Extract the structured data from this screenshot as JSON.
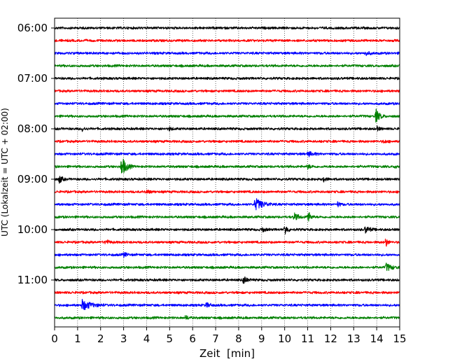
{
  "chart_data": {
    "type": "line",
    "title": "",
    "xlabel": "Zeit  [min]",
    "ylabel": "UTC (Lokalzeit = UTC + 02:00)",
    "xlim": [
      0,
      15
    ],
    "x_ticks": [
      "0",
      "1",
      "2",
      "3",
      "4",
      "5",
      "6",
      "7",
      "8",
      "9",
      "10",
      "11",
      "12",
      "13",
      "14",
      "15"
    ],
    "y_ticks": [
      "06:00",
      "07:00",
      "08:00",
      "09:00",
      "10:00",
      "11:00"
    ],
    "grid": "vertical dotted lines at each minute",
    "trace_interval_min": 15,
    "color_cycle": [
      "#000000",
      "#ff0000",
      "#0000ff",
      "#008000"
    ],
    "traces": [
      {
        "start": "06:00",
        "color": "#000000",
        "events": []
      },
      {
        "start": "06:15",
        "color": "#ff0000",
        "events": []
      },
      {
        "start": "06:30",
        "color": "#0000ff",
        "events": [
          {
            "t_min": 13.5,
            "amp": 0.25,
            "dur_min": 0.5
          }
        ]
      },
      {
        "start": "06:45",
        "color": "#008000",
        "events": []
      },
      {
        "start": "07:00",
        "color": "#000000",
        "events": []
      },
      {
        "start": "07:15",
        "color": "#ff0000",
        "events": []
      },
      {
        "start": "07:30",
        "color": "#0000ff",
        "events": []
      },
      {
        "start": "07:45",
        "color": "#008000",
        "events": [
          {
            "t_min": 13.95,
            "amp": 0.95,
            "dur_min": 0.45
          }
        ]
      },
      {
        "start": "08:00",
        "color": "#000000",
        "events": [
          {
            "t_min": 1.2,
            "amp": 0.3,
            "dur_min": 0.3
          },
          {
            "t_min": 5.0,
            "amp": 0.3,
            "dur_min": 0.2
          },
          {
            "t_min": 14.0,
            "amp": 0.3,
            "dur_min": 0.3
          }
        ]
      },
      {
        "start": "08:15",
        "color": "#ff0000",
        "events": [
          {
            "t_min": 14.3,
            "amp": 0.25,
            "dur_min": 0.3
          }
        ]
      },
      {
        "start": "08:30",
        "color": "#0000ff",
        "events": [
          {
            "t_min": 11.0,
            "amp": 0.3,
            "dur_min": 0.6
          }
        ]
      },
      {
        "start": "08:45",
        "color": "#008000",
        "events": [
          {
            "t_min": 2.9,
            "amp": 1.5,
            "dur_min": 0.5
          },
          {
            "t_min": 11.0,
            "amp": 0.25,
            "dur_min": 0.4
          },
          {
            "t_min": 14.8,
            "amp": 0.3,
            "dur_min": 0.2
          }
        ]
      },
      {
        "start": "09:00",
        "color": "#000000",
        "events": [
          {
            "t_min": 0.2,
            "amp": 0.6,
            "dur_min": 0.3
          },
          {
            "t_min": 11.7,
            "amp": 0.3,
            "dur_min": 0.3
          }
        ]
      },
      {
        "start": "09:15",
        "color": "#ff0000",
        "events": [
          {
            "t_min": 4.0,
            "amp": 0.25,
            "dur_min": 0.4
          }
        ]
      },
      {
        "start": "09:30",
        "color": "#0000ff",
        "events": [
          {
            "t_min": 8.7,
            "amp": 0.85,
            "dur_min": 0.9
          },
          {
            "t_min": 12.3,
            "amp": 0.3,
            "dur_min": 0.3
          }
        ]
      },
      {
        "start": "09:45",
        "color": "#008000",
        "events": [
          {
            "t_min": 10.4,
            "amp": 0.5,
            "dur_min": 0.5
          },
          {
            "t_min": 11.0,
            "amp": 0.9,
            "dur_min": 0.3
          }
        ]
      },
      {
        "start": "10:00",
        "color": "#000000",
        "events": [
          {
            "t_min": 9.0,
            "amp": 0.3,
            "dur_min": 0.4
          },
          {
            "t_min": 10.0,
            "amp": 0.8,
            "dur_min": 0.3
          },
          {
            "t_min": 13.5,
            "amp": 0.45,
            "dur_min": 0.5
          }
        ]
      },
      {
        "start": "10:15",
        "color": "#ff0000",
        "events": [
          {
            "t_min": 2.2,
            "amp": 0.35,
            "dur_min": 0.4
          },
          {
            "t_min": 14.4,
            "amp": 0.7,
            "dur_min": 0.2
          }
        ]
      },
      {
        "start": "10:30",
        "color": "#0000ff",
        "events": [
          {
            "t_min": 3.0,
            "amp": 0.35,
            "dur_min": 0.3
          }
        ]
      },
      {
        "start": "10:45",
        "color": "#008000",
        "events": [
          {
            "t_min": 14.4,
            "amp": 0.55,
            "dur_min": 0.6
          }
        ]
      },
      {
        "start": "11:00",
        "color": "#000000",
        "events": [
          {
            "t_min": 8.2,
            "amp": 0.5,
            "dur_min": 0.4
          }
        ]
      },
      {
        "start": "11:15",
        "color": "#ff0000",
        "events": []
      },
      {
        "start": "11:30",
        "color": "#0000ff",
        "events": [
          {
            "t_min": 1.2,
            "amp": 0.7,
            "dur_min": 1.0
          },
          {
            "t_min": 6.6,
            "amp": 0.3,
            "dur_min": 0.4
          }
        ]
      },
      {
        "start": "11:45",
        "color": "#008000",
        "events": [
          {
            "t_min": 5.7,
            "amp": 0.3,
            "dur_min": 0.3
          }
        ]
      }
    ]
  }
}
